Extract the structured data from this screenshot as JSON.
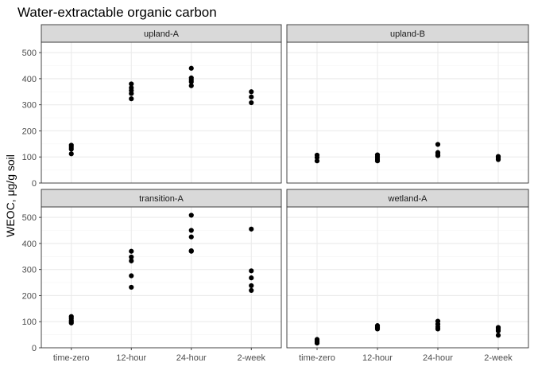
{
  "chart_data": {
    "type": "scatter",
    "title": "Water-extractable organic carbon",
    "xlabel": "",
    "ylabel": "WEOC, μg/g soil",
    "categories": [
      "time-zero",
      "12-hour",
      "24-hour",
      "2-week"
    ],
    "ylim": [
      0,
      540
    ],
    "yticks": [
      0,
      100,
      200,
      300,
      400,
      500
    ],
    "grid": true,
    "facets": [
      {
        "name": "upland-A",
        "points": [
          {
            "x": "time-zero",
            "y": 145
          },
          {
            "x": "time-zero",
            "y": 138
          },
          {
            "x": "time-zero",
            "y": 130
          },
          {
            "x": "time-zero",
            "y": 112
          },
          {
            "x": "12-hour",
            "y": 380
          },
          {
            "x": "12-hour",
            "y": 365
          },
          {
            "x": "12-hour",
            "y": 355
          },
          {
            "x": "12-hour",
            "y": 343
          },
          {
            "x": "12-hour",
            "y": 323
          },
          {
            "x": "24-hour",
            "y": 440
          },
          {
            "x": "24-hour",
            "y": 403
          },
          {
            "x": "24-hour",
            "y": 395
          },
          {
            "x": "24-hour",
            "y": 388
          },
          {
            "x": "24-hour",
            "y": 373
          },
          {
            "x": "2-week",
            "y": 350
          },
          {
            "x": "2-week",
            "y": 330
          },
          {
            "x": "2-week",
            "y": 308
          }
        ]
      },
      {
        "name": "upland-B",
        "points": [
          {
            "x": "time-zero",
            "y": 107
          },
          {
            "x": "time-zero",
            "y": 98
          },
          {
            "x": "time-zero",
            "y": 85
          },
          {
            "x": "12-hour",
            "y": 108
          },
          {
            "x": "12-hour",
            "y": 100
          },
          {
            "x": "12-hour",
            "y": 92
          },
          {
            "x": "12-hour",
            "y": 85
          },
          {
            "x": "24-hour",
            "y": 148
          },
          {
            "x": "24-hour",
            "y": 117
          },
          {
            "x": "24-hour",
            "y": 112
          },
          {
            "x": "24-hour",
            "y": 105
          },
          {
            "x": "2-week",
            "y": 102
          },
          {
            "x": "2-week",
            "y": 97
          },
          {
            "x": "2-week",
            "y": 90
          }
        ]
      },
      {
        "name": "transition-A",
        "points": [
          {
            "x": "time-zero",
            "y": 120
          },
          {
            "x": "time-zero",
            "y": 113
          },
          {
            "x": "time-zero",
            "y": 106
          },
          {
            "x": "time-zero",
            "y": 100
          },
          {
            "x": "time-zero",
            "y": 95
          },
          {
            "x": "12-hour",
            "y": 370
          },
          {
            "x": "12-hour",
            "y": 348
          },
          {
            "x": "12-hour",
            "y": 333
          },
          {
            "x": "12-hour",
            "y": 276
          },
          {
            "x": "12-hour",
            "y": 232
          },
          {
            "x": "24-hour",
            "y": 508
          },
          {
            "x": "24-hour",
            "y": 450
          },
          {
            "x": "24-hour",
            "y": 425
          },
          {
            "x": "24-hour",
            "y": 372
          },
          {
            "x": "24-hour",
            "y": 370
          },
          {
            "x": "2-week",
            "y": 455
          },
          {
            "x": "2-week",
            "y": 295
          },
          {
            "x": "2-week",
            "y": 268
          },
          {
            "x": "2-week",
            "y": 238
          },
          {
            "x": "2-week",
            "y": 220
          }
        ]
      },
      {
        "name": "wetland-A",
        "points": [
          {
            "x": "time-zero",
            "y": 32
          },
          {
            "x": "time-zero",
            "y": 27
          },
          {
            "x": "time-zero",
            "y": 22
          },
          {
            "x": "time-zero",
            "y": 18
          },
          {
            "x": "12-hour",
            "y": 85
          },
          {
            "x": "12-hour",
            "y": 78
          },
          {
            "x": "12-hour",
            "y": 72
          },
          {
            "x": "24-hour",
            "y": 102
          },
          {
            "x": "24-hour",
            "y": 90
          },
          {
            "x": "24-hour",
            "y": 80
          },
          {
            "x": "24-hour",
            "y": 72
          },
          {
            "x": "2-week",
            "y": 78
          },
          {
            "x": "2-week",
            "y": 72
          },
          {
            "x": "2-week",
            "y": 65
          },
          {
            "x": "2-week",
            "y": 48
          }
        ]
      }
    ],
    "colors": {
      "point": "#000000",
      "strip_fill": "#d9d9d9",
      "strip_border": "#333333",
      "panel_border": "#333333",
      "grid_major": "#ebebeb",
      "grid_minor": "#f4f4f4",
      "tick_text": "#4d4d4d"
    }
  }
}
